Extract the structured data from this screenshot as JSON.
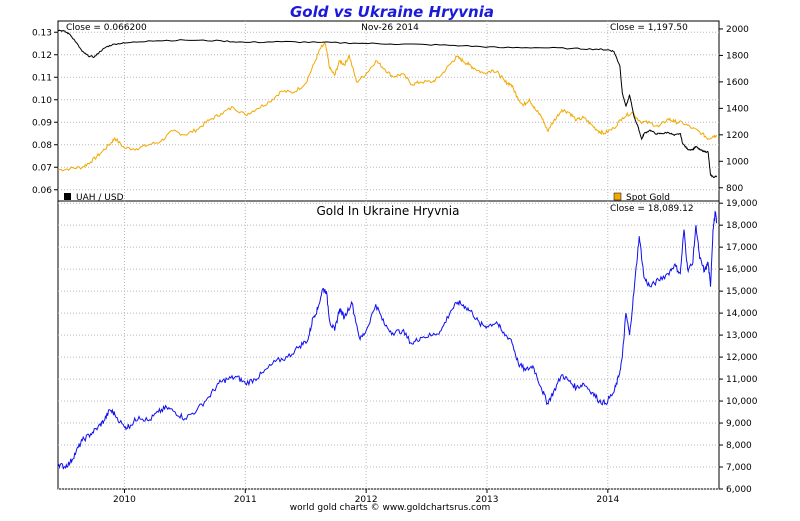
{
  "title": "Gold vs Ukraine Hryvnia",
  "footer": "world gold charts © www.goldchartsrus.com",
  "colors": {
    "uah": "#000000",
    "gold": "#f2a900",
    "gold_uah": "#1010ee",
    "grid": "#b8b8b8",
    "title": "#1a1ad8"
  },
  "chart_data": [
    {
      "type": "line",
      "grid": true,
      "info": {
        "left": "Close = 0.066200",
        "center": "Nov-26  2014",
        "right": "Close = 1,197.50"
      },
      "x_ticks": [
        "2010",
        "2011",
        "2012",
        "2013",
        "2014"
      ],
      "y_left": {
        "ticks": [
          "0.13",
          "0.12",
          "0.11",
          "0.10",
          "0.09",
          "0.08",
          "0.07",
          "0.06"
        ],
        "range": [
          0.055,
          0.135
        ]
      },
      "y_right": {
        "ticks": [
          "2000",
          "1800",
          "1600",
          "1400",
          "1200",
          "1000",
          "800"
        ],
        "range": [
          700,
          2060
        ]
      },
      "legend": {
        "left": "UAH / USD",
        "right": "Spot Gold"
      },
      "series": [
        {
          "name": "UAH / USD",
          "axis": "left",
          "points": [
            [
              2009.45,
              0.131
            ],
            [
              2009.5,
              0.1305
            ],
            [
              2009.55,
              0.129
            ],
            [
              2009.6,
              0.1255
            ],
            [
              2009.65,
              0.1215
            ],
            [
              2009.7,
              0.1195
            ],
            [
              2009.75,
              0.119
            ],
            [
              2009.8,
              0.1215
            ],
            [
              2009.85,
              0.1235
            ],
            [
              2009.92,
              0.1248
            ],
            [
              2010.0,
              0.1252
            ],
            [
              2010.2,
              0.1262
            ],
            [
              2010.5,
              0.1265
            ],
            [
              2010.8,
              0.1262
            ],
            [
              2011.0,
              0.1255
            ],
            [
              2011.3,
              0.1258
            ],
            [
              2011.6,
              0.1255
            ],
            [
              2011.9,
              0.1252
            ],
            [
              2012.2,
              0.1248
            ],
            [
              2012.5,
              0.1245
            ],
            [
              2012.8,
              0.124
            ],
            [
              2013.1,
              0.1232
            ],
            [
              2013.4,
              0.1232
            ],
            [
              2013.7,
              0.1228
            ],
            [
              2013.9,
              0.1225
            ],
            [
              2014.0,
              0.1222
            ],
            [
              2014.05,
              0.1215
            ],
            [
              2014.1,
              0.115
            ],
            [
              2014.12,
              0.103
            ],
            [
              2014.15,
              0.097
            ],
            [
              2014.18,
              0.102
            ],
            [
              2014.22,
              0.092
            ],
            [
              2014.25,
              0.088
            ],
            [
              2014.28,
              0.0825
            ],
            [
              2014.3,
              0.085
            ],
            [
              2014.35,
              0.0865
            ],
            [
              2014.4,
              0.0848
            ],
            [
              2014.45,
              0.085
            ],
            [
              2014.5,
              0.0855
            ],
            [
              2014.55,
              0.0842
            ],
            [
              2014.6,
              0.085
            ],
            [
              2014.62,
              0.0805
            ],
            [
              2014.66,
              0.078
            ],
            [
              2014.7,
              0.0778
            ],
            [
              2014.73,
              0.0792
            ],
            [
              2014.76,
              0.0778
            ],
            [
              2014.8,
              0.077
            ],
            [
              2014.83,
              0.0768
            ],
            [
              2014.85,
              0.0665
            ],
            [
              2014.88,
              0.0655
            ],
            [
              2014.9,
              0.0662
            ]
          ]
        },
        {
          "name": "Spot Gold",
          "axis": "right",
          "points": [
            [
              2009.45,
              935
            ],
            [
              2009.55,
              945
            ],
            [
              2009.65,
              955
            ],
            [
              2009.72,
              995
            ],
            [
              2009.8,
              1060
            ],
            [
              2009.88,
              1130
            ],
            [
              2009.92,
              1175
            ],
            [
              2010.0,
              1100
            ],
            [
              2010.1,
              1095
            ],
            [
              2010.2,
              1125
            ],
            [
              2010.3,
              1150
            ],
            [
              2010.4,
              1230
            ],
            [
              2010.5,
              1200
            ],
            [
              2010.6,
              1240
            ],
            [
              2010.7,
              1310
            ],
            [
              2010.8,
              1360
            ],
            [
              2010.9,
              1410
            ],
            [
              2011.0,
              1350
            ],
            [
              2011.1,
              1400
            ],
            [
              2011.2,
              1450
            ],
            [
              2011.3,
              1530
            ],
            [
              2011.4,
              1520
            ],
            [
              2011.5,
              1590
            ],
            [
              2011.58,
              1760
            ],
            [
              2011.62,
              1850
            ],
            [
              2011.66,
              1890
            ],
            [
              2011.7,
              1700
            ],
            [
              2011.74,
              1650
            ],
            [
              2011.78,
              1760
            ],
            [
              2011.82,
              1730
            ],
            [
              2011.86,
              1800
            ],
            [
              2011.92,
              1600
            ],
            [
              2012.0,
              1660
            ],
            [
              2012.08,
              1760
            ],
            [
              2012.15,
              1700
            ],
            [
              2012.22,
              1640
            ],
            [
              2012.3,
              1660
            ],
            [
              2012.38,
              1580
            ],
            [
              2012.45,
              1600
            ],
            [
              2012.55,
              1600
            ],
            [
              2012.62,
              1650
            ],
            [
              2012.7,
              1740
            ],
            [
              2012.75,
              1790
            ],
            [
              2012.8,
              1760
            ],
            [
              2012.85,
              1730
            ],
            [
              2012.9,
              1700
            ],
            [
              2012.97,
              1665
            ],
            [
              2013.05,
              1690
            ],
            [
              2013.1,
              1660
            ],
            [
              2013.15,
              1600
            ],
            [
              2013.2,
              1580
            ],
            [
              2013.25,
              1490
            ],
            [
              2013.3,
              1420
            ],
            [
              2013.35,
              1470
            ],
            [
              2013.4,
              1390
            ],
            [
              2013.45,
              1340
            ],
            [
              2013.5,
              1230
            ],
            [
              2013.55,
              1300
            ],
            [
              2013.62,
              1390
            ],
            [
              2013.68,
              1370
            ],
            [
              2013.74,
              1310
            ],
            [
              2013.8,
              1330
            ],
            [
              2013.86,
              1280
            ],
            [
              2013.92,
              1230
            ],
            [
              2013.97,
              1210
            ],
            [
              2014.05,
              1250
            ],
            [
              2014.12,
              1330
            ],
            [
              2014.2,
              1370
            ],
            [
              2014.27,
              1300
            ],
            [
              2014.35,
              1290
            ],
            [
              2014.42,
              1260
            ],
            [
              2014.5,
              1320
            ],
            [
              2014.55,
              1300
            ],
            [
              2014.62,
              1290
            ],
            [
              2014.7,
              1250
            ],
            [
              2014.78,
              1210
            ],
            [
              2014.83,
              1170
            ],
            [
              2014.87,
              1190
            ],
            [
              2014.9,
              1197.5
            ]
          ]
        }
      ]
    },
    {
      "type": "line",
      "grid": true,
      "subtitle": "Gold In Ukraine Hryvnia",
      "info": {
        "right": "Close = 18,089.12"
      },
      "x_ticks": [
        "2010",
        "2011",
        "2012",
        "2013",
        "2014"
      ],
      "y_right": {
        "ticks": [
          "19,000",
          "18,000",
          "17,000",
          "16,000",
          "15,000",
          "14,000",
          "13,000",
          "12,000",
          "11,000",
          "10,000",
          "9,000",
          "8,000",
          "7,000",
          "6,000"
        ],
        "range": [
          6000,
          19100
        ]
      },
      "series": [
        {
          "name": "Gold In Ukraine Hryvnia",
          "axis": "right",
          "points": [
            [
              2009.45,
              7150
            ],
            [
              2009.5,
              7000
            ],
            [
              2009.55,
              7200
            ],
            [
              2009.6,
              7700
            ],
            [
              2009.65,
              8200
            ],
            [
              2009.72,
              8500
            ],
            [
              2009.78,
              8800
            ],
            [
              2009.83,
              9100
            ],
            [
              2009.88,
              9600
            ],
            [
              2009.92,
              9400
            ],
            [
              2010.0,
              8800
            ],
            [
              2010.05,
              8900
            ],
            [
              2010.12,
              9300
            ],
            [
              2010.2,
              9100
            ],
            [
              2010.28,
              9500
            ],
            [
              2010.35,
              9700
            ],
            [
              2010.42,
              9500
            ],
            [
              2010.5,
              9200
            ],
            [
              2010.6,
              9600
            ],
            [
              2010.7,
              10200
            ],
            [
              2010.78,
              10800
            ],
            [
              2010.85,
              11000
            ],
            [
              2010.93,
              11100
            ],
            [
              2011.0,
              10800
            ],
            [
              2011.08,
              11000
            ],
            [
              2011.15,
              11300
            ],
            [
              2011.25,
              11800
            ],
            [
              2011.35,
              12000
            ],
            [
              2011.45,
              12500
            ],
            [
              2011.52,
              12800
            ],
            [
              2011.56,
              13800
            ],
            [
              2011.6,
              14200
            ],
            [
              2011.64,
              15100
            ],
            [
              2011.67,
              15000
            ],
            [
              2011.7,
              13600
            ],
            [
              2011.74,
              13200
            ],
            [
              2011.78,
              14200
            ],
            [
              2011.82,
              13800
            ],
            [
              2011.88,
              14500
            ],
            [
              2011.95,
              12800
            ],
            [
              2012.0,
              13200
            ],
            [
              2012.08,
              14400
            ],
            [
              2012.15,
              13500
            ],
            [
              2012.22,
              13100
            ],
            [
              2012.3,
              13200
            ],
            [
              2012.38,
              12600
            ],
            [
              2012.45,
              12900
            ],
            [
              2012.55,
              13000
            ],
            [
              2012.62,
              13200
            ],
            [
              2012.7,
              14100
            ],
            [
              2012.76,
              14500
            ],
            [
              2012.82,
              14300
            ],
            [
              2012.88,
              14000
            ],
            [
              2012.94,
              13500
            ],
            [
              2013.0,
              13400
            ],
            [
              2013.08,
              13600
            ],
            [
              2013.13,
              13100
            ],
            [
              2013.2,
              12800
            ],
            [
              2013.26,
              11700
            ],
            [
              2013.32,
              11400
            ],
            [
              2013.38,
              11600
            ],
            [
              2013.45,
              10600
            ],
            [
              2013.5,
              9900
            ],
            [
              2013.55,
              10400
            ],
            [
              2013.62,
              11200
            ],
            [
              2013.68,
              10900
            ],
            [
              2013.74,
              10600
            ],
            [
              2013.8,
              10800
            ],
            [
              2013.87,
              10400
            ],
            [
              2013.93,
              10000
            ],
            [
              2013.98,
              9900
            ],
            [
              2014.05,
              10400
            ],
            [
              2014.09,
              11100
            ],
            [
              2014.12,
              12000
            ],
            [
              2014.15,
              14000
            ],
            [
              2014.18,
              13000
            ],
            [
              2014.22,
              15200
            ],
            [
              2014.26,
              17500
            ],
            [
              2014.3,
              15600
            ],
            [
              2014.35,
              15200
            ],
            [
              2014.42,
              15500
            ],
            [
              2014.5,
              15800
            ],
            [
              2014.55,
              16200
            ],
            [
              2014.6,
              15800
            ],
            [
              2014.63,
              17800
            ],
            [
              2014.66,
              16000
            ],
            [
              2014.7,
              16200
            ],
            [
              2014.73,
              18000
            ],
            [
              2014.76,
              16500
            ],
            [
              2014.8,
              15900
            ],
            [
              2014.83,
              16300
            ],
            [
              2014.85,
              15200
            ],
            [
              2014.87,
              17800
            ],
            [
              2014.89,
              18600
            ],
            [
              2014.9,
              18089
            ]
          ]
        }
      ]
    }
  ]
}
